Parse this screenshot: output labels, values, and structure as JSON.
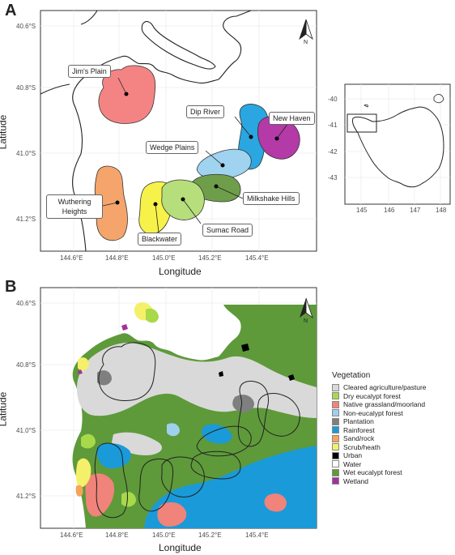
{
  "panels": {
    "a": {
      "label": "A",
      "x_title": "Longitude",
      "y_title": "Latitude",
      "x_ticks": [
        "144.6°E",
        "144.8°E",
        "145.0°E",
        "145.2°E",
        "145.4°E"
      ],
      "y_ticks": [
        "40.6°S",
        "40.8°S",
        "41.0°S",
        "41.2°S"
      ],
      "north": "N",
      "sites": [
        {
          "name": "Jim's Plain",
          "color": "#f48484"
        },
        {
          "name": "Dip River",
          "color": "#2aa6e0"
        },
        {
          "name": "New Haven",
          "color": "#b43aa8"
        },
        {
          "name": "Wedge Plains",
          "color": "#9fd3f0"
        },
        {
          "name": "Milkshake Hills",
          "color": "#6f9e4a"
        },
        {
          "name": "Wuthering Heights",
          "color": "#f5a56b"
        },
        {
          "name": "Blackwater",
          "color": "#f7f24a"
        },
        {
          "name": "Sumac Road",
          "color": "#b6de7a"
        }
      ],
      "inset": {
        "x_ticks": [
          "145",
          "146",
          "147",
          "148"
        ],
        "y_ticks": [
          "-40",
          "-41",
          "-42",
          "-43"
        ]
      }
    },
    "b": {
      "label": "B",
      "x_title": "Longitude",
      "y_title": "Latitude",
      "x_ticks": [
        "144.6°E",
        "144.8°E",
        "145.0°E",
        "145.2°E",
        "145.4°E"
      ],
      "y_ticks": [
        "40.6°S",
        "40.8°S",
        "41.0°S",
        "41.2°S"
      ],
      "north": "N"
    }
  },
  "legend": {
    "title": "Vegetation",
    "items": [
      {
        "label": "Cleared agriculture/pasture",
        "color": "#d9d9d9"
      },
      {
        "label": "Dry eucalypt forest",
        "color": "#a8d94a"
      },
      {
        "label": "Native grassland/moorland",
        "color": "#f0837a"
      },
      {
        "label": "Non-eucalypt forest",
        "color": "#9fd0ee"
      },
      {
        "label": "Plantation",
        "color": "#7f7f7f"
      },
      {
        "label": "Rainforest",
        "color": "#1a9ad8"
      },
      {
        "label": "Sand/rock",
        "color": "#f7a35c"
      },
      {
        "label": "Scrub/heath",
        "color": "#f5f06a"
      },
      {
        "label": "Urban",
        "color": "#000000"
      },
      {
        "label": "Water",
        "color": "#ffffff"
      },
      {
        "label": "Wet eucalypt forest",
        "color": "#5e9a3a"
      },
      {
        "label": "Wetland",
        "color": "#a4319a"
      }
    ]
  }
}
